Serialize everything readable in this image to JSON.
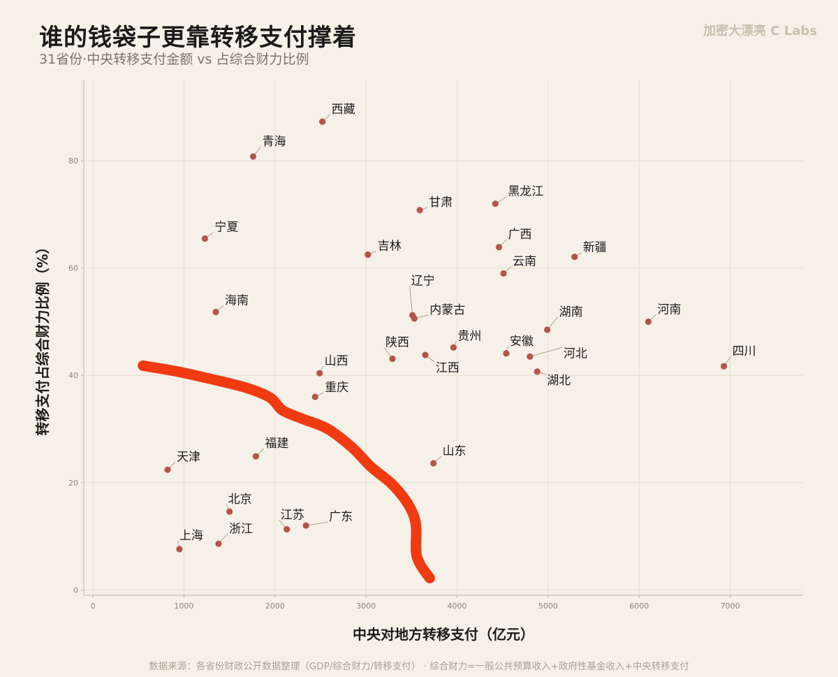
{
  "title": "谁的钱袋子更靠转移支付撑着",
  "subtitle": "31省份·中央转移支付金额 vs 占综合财力比例",
  "brand": "加密大漂亮 C Labs",
  "footnote": "数据来源：各省份财政公开数据整理（GDP/综合财力/转移支付） · 综合财力=一般公共预算收入+政府性基金收入+中央转移支付",
  "colors": {
    "background": "#f6f1e8",
    "point": "#b5544a",
    "annotation_stroke": "#f03a12",
    "grid": "#e7ddca"
  },
  "chart_data": {
    "type": "scatter",
    "xlabel": "中央对地方转移支付（亿元）",
    "ylabel": "转移支付占综合财力比例（%）",
    "xlim": [
      -100,
      7800
    ],
    "ylim": [
      -1,
      95
    ],
    "xticks": [
      0,
      1000,
      2000,
      3000,
      4000,
      5000,
      6000,
      7000
    ],
    "yticks": [
      0,
      20,
      40,
      60,
      80
    ],
    "grid": true,
    "points": [
      {
        "name": "西藏",
        "x": 2520,
        "y": 87.3
      },
      {
        "name": "青海",
        "x": 1760,
        "y": 80.8
      },
      {
        "name": "甘肃",
        "x": 3590,
        "y": 70.8
      },
      {
        "name": "黑龙江",
        "x": 4420,
        "y": 72.0
      },
      {
        "name": "宁夏",
        "x": 1230,
        "y": 65.5
      },
      {
        "name": "吉林",
        "x": 3020,
        "y": 62.5
      },
      {
        "name": "广西",
        "x": 4460,
        "y": 63.9
      },
      {
        "name": "新疆",
        "x": 5290,
        "y": 62.1
      },
      {
        "name": "云南",
        "x": 4510,
        "y": 59.0
      },
      {
        "name": "辽宁",
        "x": 3510,
        "y": 51.2
      },
      {
        "name": "内蒙古",
        "x": 3530,
        "y": 50.6
      },
      {
        "name": "海南",
        "x": 1350,
        "y": 51.8
      },
      {
        "name": "湖南",
        "x": 4990,
        "y": 48.5
      },
      {
        "name": "河南",
        "x": 6100,
        "y": 50.0
      },
      {
        "name": "贵州",
        "x": 3960,
        "y": 45.2
      },
      {
        "name": "陕西",
        "x": 3290,
        "y": 43.1
      },
      {
        "name": "安徽",
        "x": 4540,
        "y": 44.1
      },
      {
        "name": "河北",
        "x": 4800,
        "y": 43.5
      },
      {
        "name": "江西",
        "x": 3650,
        "y": 43.8
      },
      {
        "name": "四川",
        "x": 6930,
        "y": 41.7
      },
      {
        "name": "湖北",
        "x": 4880,
        "y": 40.7
      },
      {
        "name": "山西",
        "x": 2490,
        "y": 40.4
      },
      {
        "name": "重庆",
        "x": 2440,
        "y": 36.0
      },
      {
        "name": "福建",
        "x": 1790,
        "y": 24.9
      },
      {
        "name": "天津",
        "x": 820,
        "y": 22.4
      },
      {
        "name": "山东",
        "x": 3740,
        "y": 23.6
      },
      {
        "name": "北京",
        "x": 1500,
        "y": 14.6
      },
      {
        "name": "江苏",
        "x": 2130,
        "y": 11.3
      },
      {
        "name": "广东",
        "x": 2340,
        "y": 12.0
      },
      {
        "name": "浙江",
        "x": 1380,
        "y": 8.6
      },
      {
        "name": "上海",
        "x": 950,
        "y": 7.6
      }
    ],
    "annotation_curve": [
      [
        550,
        41.8
      ],
      [
        900,
        40.8
      ],
      [
        1300,
        39.3
      ],
      [
        1700,
        37.6
      ],
      [
        1950,
        35.8
      ],
      [
        2080,
        33.5
      ],
      [
        2300,
        31.9
      ],
      [
        2580,
        30.0
      ],
      [
        2850,
        26.5
      ],
      [
        3050,
        23.0
      ],
      [
        3280,
        19.8
      ],
      [
        3430,
        16.8
      ],
      [
        3520,
        14.0
      ],
      [
        3550,
        11.5
      ],
      [
        3550,
        7.0
      ],
      [
        3600,
        4.6
      ],
      [
        3700,
        2.2
      ]
    ]
  }
}
